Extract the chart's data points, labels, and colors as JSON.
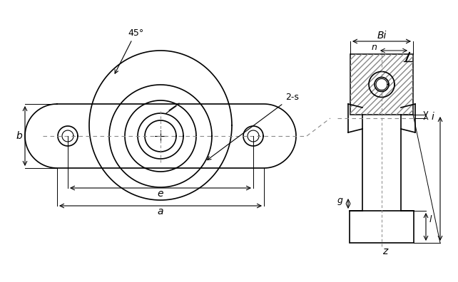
{
  "bg_color": "#ffffff",
  "line_color": "#000000",
  "dim_color": "#000000",
  "hatch_color": "#555555",
  "dashed_color": "#888888",
  "figsize": [
    6.42,
    3.96
  ],
  "dpi": 100,
  "labels": {
    "a": "a",
    "b": "b",
    "e": "e",
    "s": "2-s",
    "angle": "45°",
    "Bi": "Bi",
    "n": "n",
    "i": "i",
    "g": "g",
    "l": "l",
    "z": "z"
  }
}
